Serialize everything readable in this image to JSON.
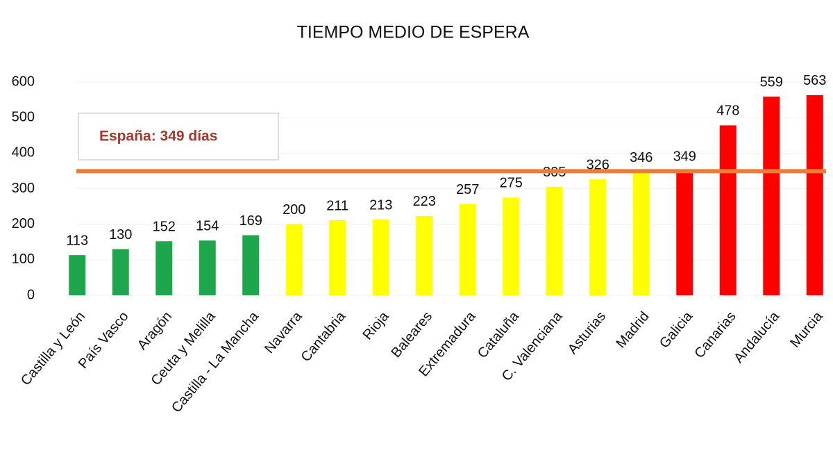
{
  "chart_data": {
    "type": "bar",
    "title": "TIEMPO MEDIO DE ESPERA",
    "categories": [
      "Castilla y León",
      "País Vasco",
      "Aragón",
      "Ceuta y Melilla",
      "Castilla - La Mancha",
      "Navarra",
      "Cantabria",
      "Rioja",
      "Baleares",
      "Extremadura",
      "Cataluña",
      "C. Valenciana",
      "Asturias",
      "Madrid",
      "Galicia",
      "Canarias",
      "Andalucía",
      "Murcia"
    ],
    "values": [
      113,
      130,
      152,
      154,
      169,
      200,
      211,
      213,
      223,
      257,
      275,
      305,
      326,
      346,
      349,
      478,
      559,
      563
    ],
    "colors": [
      "#1ea64c",
      "#1ea64c",
      "#1ea64c",
      "#1ea64c",
      "#1ea64c",
      "#ffff00",
      "#ffff00",
      "#ffff00",
      "#ffff00",
      "#ffff00",
      "#ffff00",
      "#ffff00",
      "#ffff00",
      "#ffff00",
      "#ff0000",
      "#ff0000",
      "#ff0000",
      "#ff0000"
    ],
    "ylim": [
      0,
      600
    ],
    "yticks": [
      0,
      100,
      200,
      300,
      400,
      500,
      600
    ],
    "grid": true,
    "reference_line": {
      "value": 349,
      "label": "España: 349 días",
      "color": "#ee7d3a"
    }
  }
}
